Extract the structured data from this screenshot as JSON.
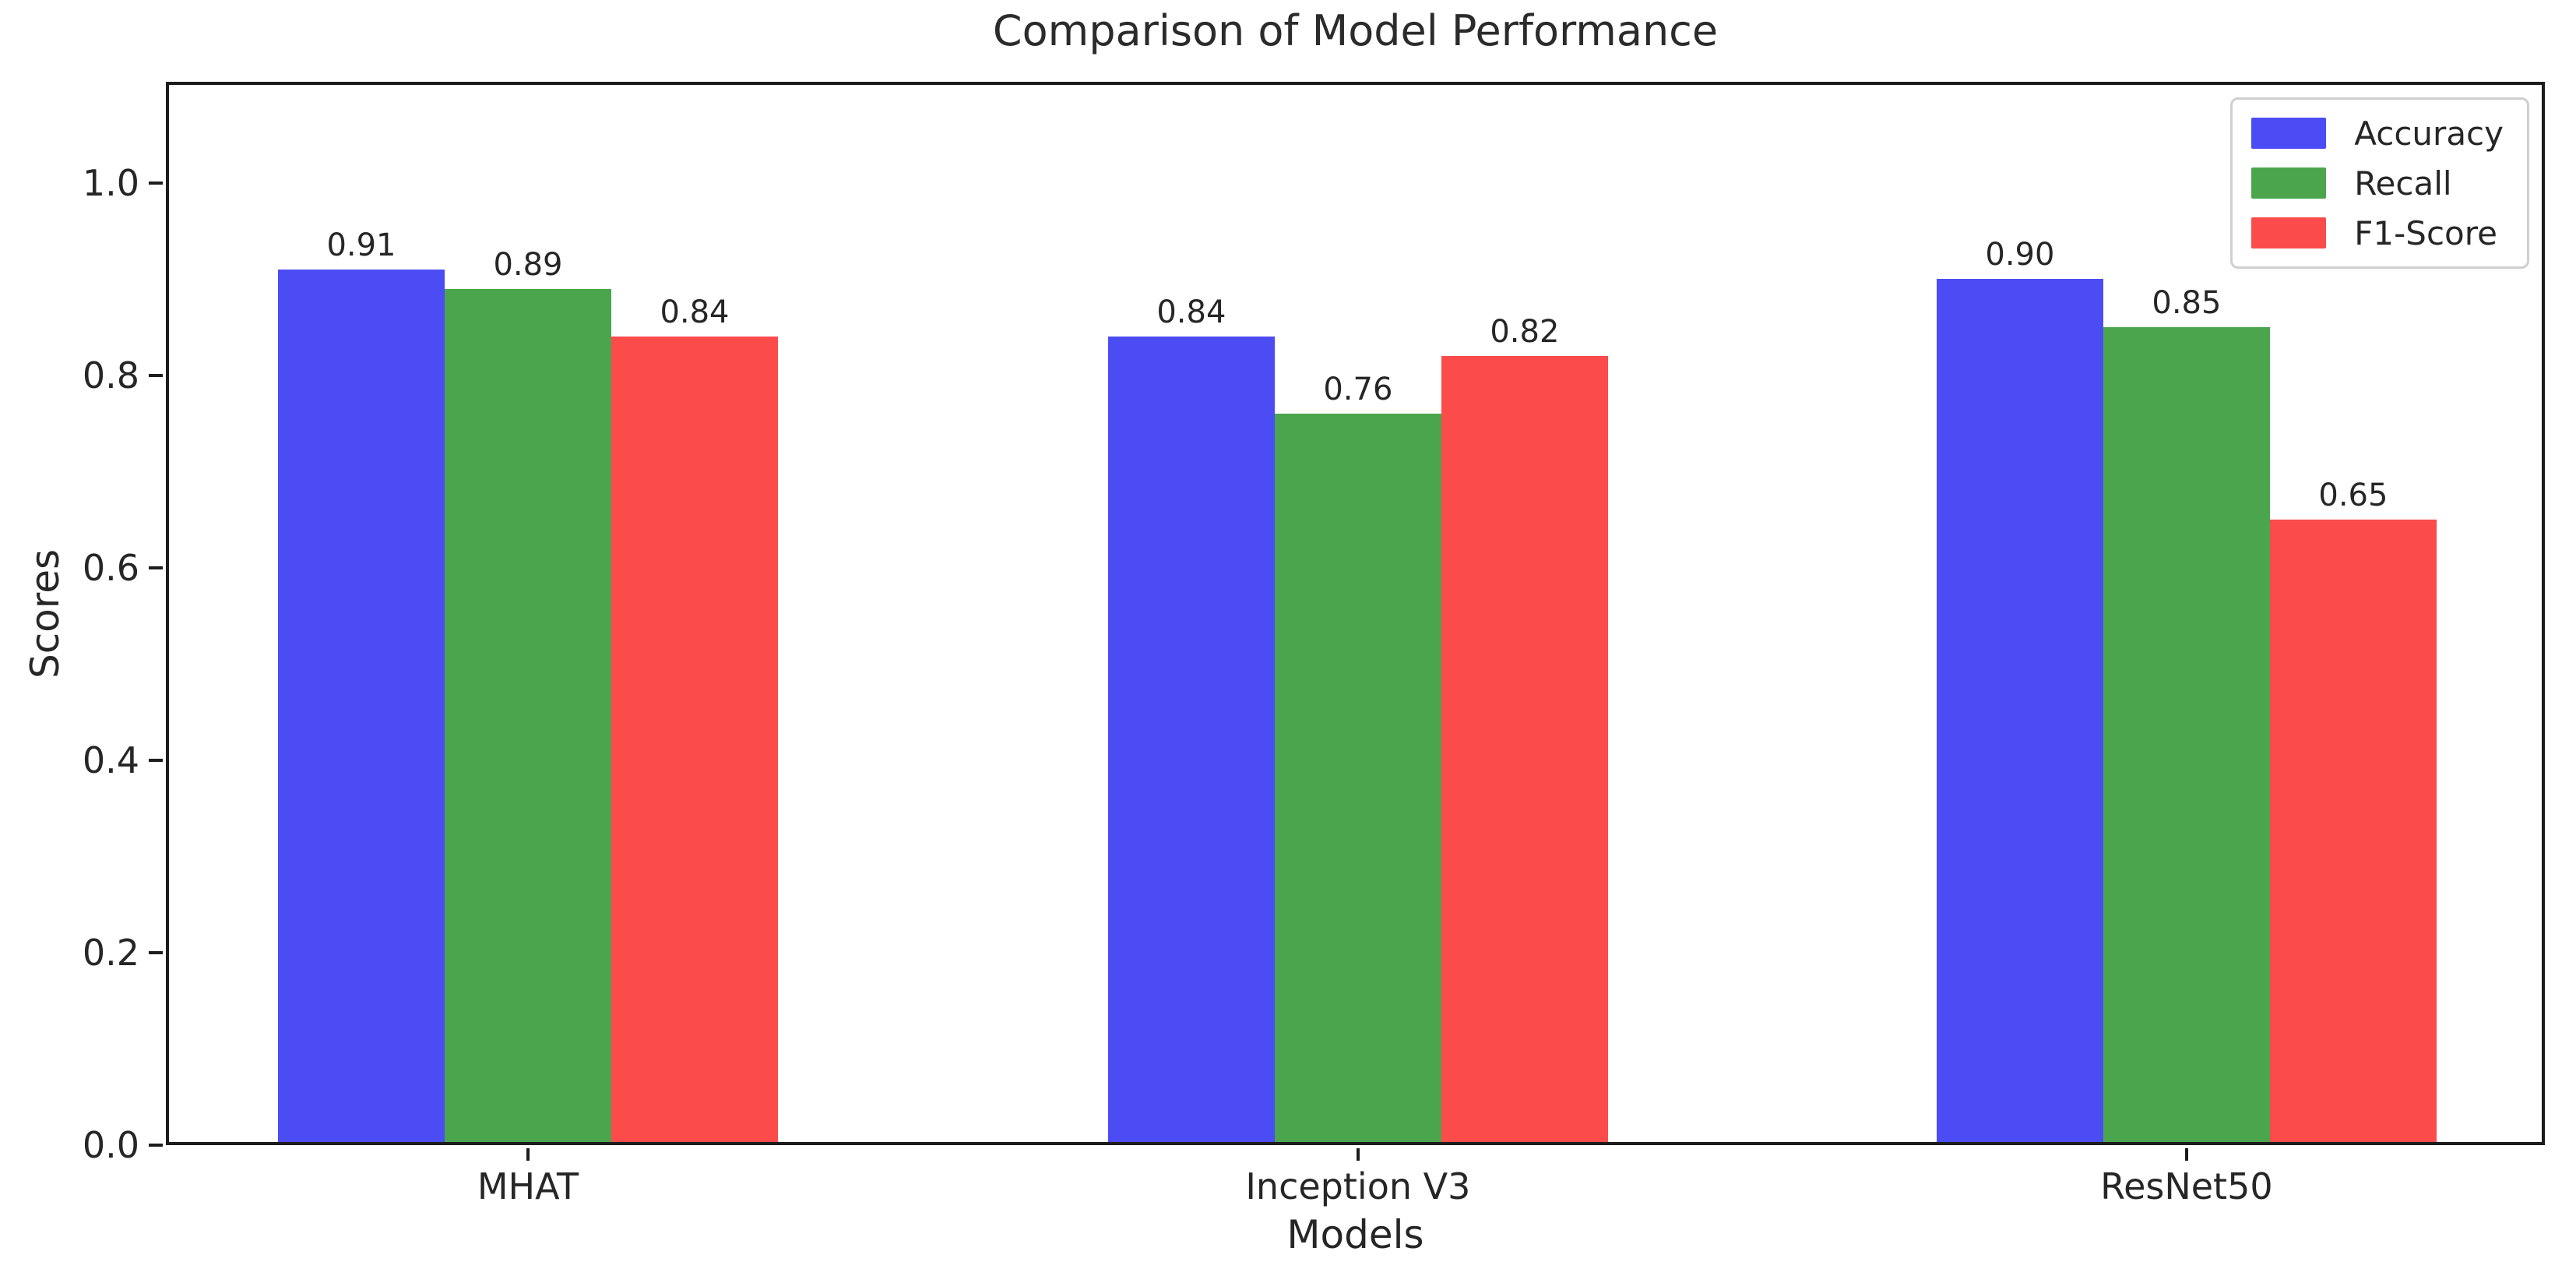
{
  "chart_data": {
    "type": "bar",
    "title": "Comparison of Model Performance",
    "xlabel": "Models",
    "ylabel": "Scores",
    "categories": [
      "MHAT",
      "Inception V3",
      "ResNet50"
    ],
    "series": [
      {
        "name": "Accuracy",
        "color": "#4C4CF5",
        "values": [
          0.91,
          0.84,
          0.9
        ]
      },
      {
        "name": "Recall",
        "color": "#4BA54C",
        "values": [
          0.89,
          0.76,
          0.85
        ]
      },
      {
        "name": "F1-Score",
        "color": "#FB4B4B",
        "values": [
          0.84,
          0.82,
          0.65
        ]
      }
    ],
    "value_labels": [
      [
        "0.91",
        "0.89",
        "0.84"
      ],
      [
        "0.84",
        "0.76",
        "0.82"
      ],
      [
        "0.90",
        "0.85",
        "0.65"
      ]
    ],
    "yticks": [
      "0.0",
      "0.2",
      "0.4",
      "0.6",
      "0.8",
      "1.0"
    ],
    "ylim": [
      0,
      1.105
    ],
    "grid": false,
    "legend": {
      "position": "upper right",
      "entries": [
        "Accuracy",
        "Recall",
        "F1-Score"
      ]
    }
  }
}
